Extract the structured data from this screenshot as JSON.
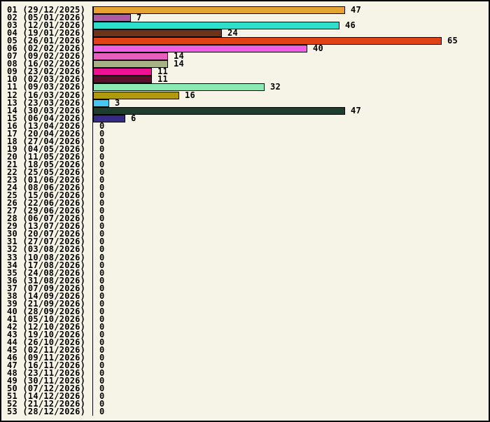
{
  "chart_data": {
    "type": "bar",
    "orientation": "horizontal",
    "title": "",
    "xlabel": "",
    "ylabel": "",
    "xlim": [
      0,
      65
    ],
    "grid": false,
    "legend": false,
    "background_color": "#F5F4E6",
    "axis_color": "#000000",
    "bar_border_color": "#000000",
    "categories": [
      "01 (29/12/2025)",
      "02 (05/01/2026)",
      "03 (12/01/2026)",
      "04 (19/01/2026)",
      "05 (26/01/2026)",
      "06 (02/02/2026)",
      "07 (09/02/2026)",
      "08 (16/02/2026)",
      "09 (23/02/2026)",
      "10 (02/03/2026)",
      "11 (09/03/2026)",
      "12 (16/03/2026)",
      "13 (23/03/2026)",
      "14 (30/03/2026)",
      "15 (06/04/2026)",
      "16 (13/04/2026)",
      "17 (20/04/2026)",
      "18 (27/04/2026)",
      "19 (04/05/2026)",
      "20 (11/05/2026)",
      "21 (18/05/2026)",
      "22 (25/05/2026)",
      "23 (01/06/2026)",
      "24 (08/06/2026)",
      "25 (15/06/2026)",
      "26 (22/06/2026)",
      "27 (29/06/2026)",
      "28 (06/07/2026)",
      "29 (13/07/2026)",
      "30 (20/07/2026)",
      "31 (27/07/2026)",
      "32 (03/08/2026)",
      "33 (10/08/2026)",
      "34 (17/08/2026)",
      "35 (24/08/2026)",
      "36 (31/08/2026)",
      "37 (07/09/2026)",
      "38 (14/09/2026)",
      "39 (21/09/2026)",
      "40 (28/09/2026)",
      "41 (05/10/2026)",
      "42 (12/10/2026)",
      "43 (19/10/2026)",
      "44 (26/10/2026)",
      "45 (02/11/2026)",
      "46 (09/11/2026)",
      "47 (16/11/2026)",
      "48 (23/11/2026)",
      "49 (30/11/2026)",
      "50 (07/12/2026)",
      "51 (14/12/2026)",
      "52 (21/12/2026)",
      "53 (28/12/2026)"
    ],
    "values": [
      47,
      7,
      46,
      24,
      65,
      40,
      14,
      14,
      11,
      11,
      32,
      16,
      3,
      47,
      6,
      0,
      0,
      0,
      0,
      0,
      0,
      0,
      0,
      0,
      0,
      0,
      0,
      0,
      0,
      0,
      0,
      0,
      0,
      0,
      0,
      0,
      0,
      0,
      0,
      0,
      0,
      0,
      0,
      0,
      0,
      0,
      0,
      0,
      0,
      0,
      0,
      0,
      0
    ],
    "bar_colors": [
      "#E6A235",
      "#AE5CA2",
      "#2EDFCB",
      "#6E3419",
      "#E04217",
      "#EE5FE5",
      "#E45FBE",
      "#A8B184",
      "#EF1093",
      "#5C0F2A",
      "#8BEAB3",
      "#AF990F",
      "#45C7F1",
      "#1E3D2F",
      "#362A86"
    ]
  }
}
